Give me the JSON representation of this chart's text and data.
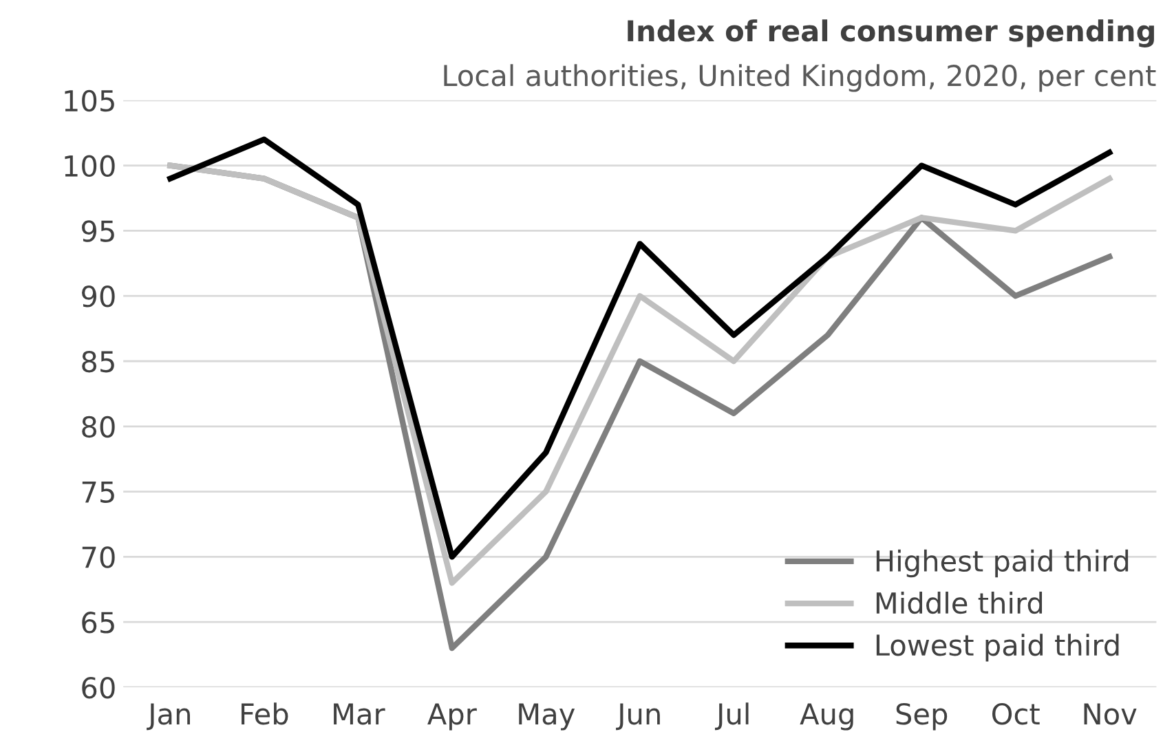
{
  "chart_data": {
    "type": "line",
    "title": "Index of real consumer spending",
    "subtitle": "Local authorities, United Kingdom, 2020, per cent",
    "categories": [
      "Jan",
      "Feb",
      "Mar",
      "Apr",
      "May",
      "Jun",
      "Jul",
      "Aug",
      "Sep",
      "Oct",
      "Nov"
    ],
    "series": [
      {
        "name": "Highest paid third",
        "color": "#7f7f7f",
        "values": [
          100,
          99,
          96,
          63,
          70,
          85,
          81,
          87,
          96,
          90,
          93
        ]
      },
      {
        "name": "Middle third",
        "color": "#bfbfbf",
        "values": [
          100,
          99,
          96,
          68,
          75,
          90,
          85,
          93,
          96,
          95,
          99
        ]
      },
      {
        "name": "Lowest paid third",
        "color": "#000000",
        "values": [
          99,
          102,
          97,
          70,
          78,
          94,
          87,
          93,
          100,
          97,
          101
        ]
      }
    ],
    "ylim": [
      60,
      105
    ],
    "yticks": [
      60,
      65,
      70,
      75,
      80,
      85,
      90,
      95,
      100,
      105
    ],
    "grid": "y",
    "legend": "bottom right",
    "marker": "none",
    "line_style": "solid"
  }
}
